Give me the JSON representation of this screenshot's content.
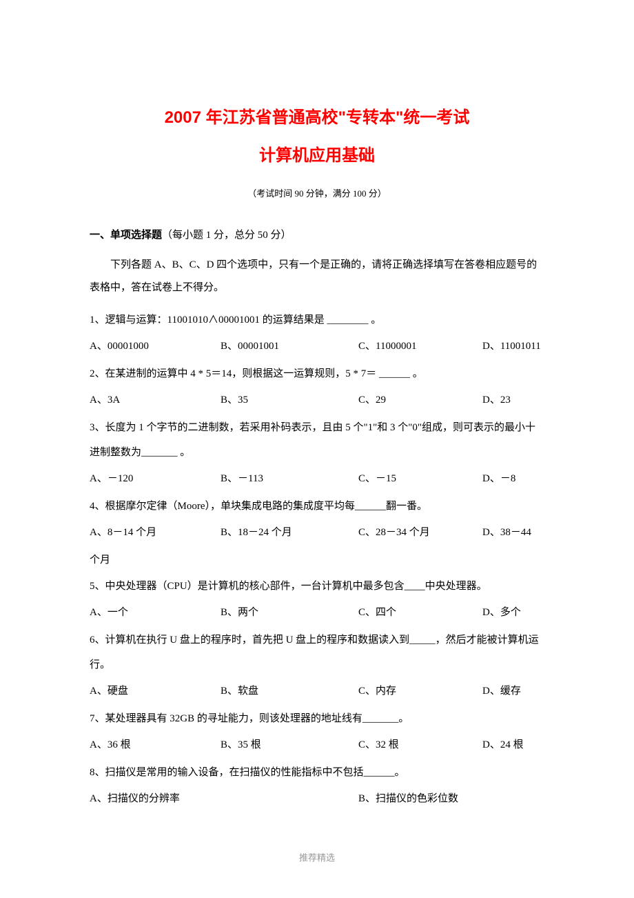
{
  "header": {
    "title_main": "2007 年江苏省普通高校\"专转本\"统一考试",
    "title_sub": "计算机应用基础",
    "exam_info": "（考试时间 90 分钟，满分 100 分）"
  },
  "section": {
    "title": "一、单项选择题",
    "subtitle": "（每小题 1 分，总分 50 分）",
    "instruction": "下列各题 A、B、C、D 四个选项中，只有一个是正确的，请将正确选择填写在答卷相应题号的表格中，答在试卷上不得分。"
  },
  "questions": [
    {
      "text": "1、逻辑与运算：11001010∧00001001 的运算结果是 ________ 。",
      "options": {
        "A": "A、00001000",
        "B": "B、00001001",
        "C": "C、11000001",
        "D": "D、11001011"
      }
    },
    {
      "text": "2、在某进制的运算中 4 * 5＝14，则根据这一运算规则，5 * 7＝ ______ 。",
      "options": {
        "A": "A、3A",
        "B": "B、35",
        "C": "C、29",
        "D": "D、23"
      }
    },
    {
      "text": "3、长度为 1 个字节的二进制数，若采用补码表示，且由 5 个\"1\"和 3 个\"0\"组成，则可表示的最小十进制整数为_______ 。",
      "options": {
        "A": "A、－120",
        "B": "B、－113",
        "C": "C、－15",
        "D": "D、－8"
      }
    },
    {
      "text": "4、根据摩尔定律（Moore），单块集成电路的集成度平均每______翻一番。",
      "options": {
        "A": "A、8－14 个月",
        "B": "B、18－24 个月",
        "C": "C、28－34 个月",
        "D": "D、38－44"
      },
      "extra": "个月"
    },
    {
      "text": "5、中央处理器（CPU）是计算机的核心部件，一台计算机中最多包含____中央处理器。",
      "options": {
        "A": "A、一个",
        "B": "B、两个",
        "C": "C、四个",
        "D": "D、多个"
      }
    },
    {
      "text": "6、计算机在执行 U 盘上的程序时，首先把 U 盘上的程序和数据读入到_____，然后才能被计算机运行。",
      "options": {
        "A": "A、硬盘",
        "B": "B、软盘",
        "C": "C、内存",
        "D": "D、缓存"
      }
    },
    {
      "text": "7、某处理器具有 32GB 的寻址能力，则该处理器的地址线有_______。",
      "options": {
        "A": "A、36 根",
        "B": "B、35 根",
        "C": "C、32 根",
        "D": "D、24 根"
      }
    },
    {
      "text": "8、扫描仪是常用的输入设备，在扫描仪的性能指标中不包括______。",
      "options2": {
        "A": "A、扫描仪的分辨率",
        "B": "B、扫描仪的色彩位数"
      }
    }
  ],
  "footer": "推荐精选",
  "colors": {
    "title_color": "#ff0000",
    "text_color": "#000000",
    "footer_color": "#999999",
    "background": "#ffffff"
  },
  "typography": {
    "title_fontsize": 24,
    "body_fontsize": 15,
    "info_fontsize": 13,
    "footer_fontsize": 13
  }
}
